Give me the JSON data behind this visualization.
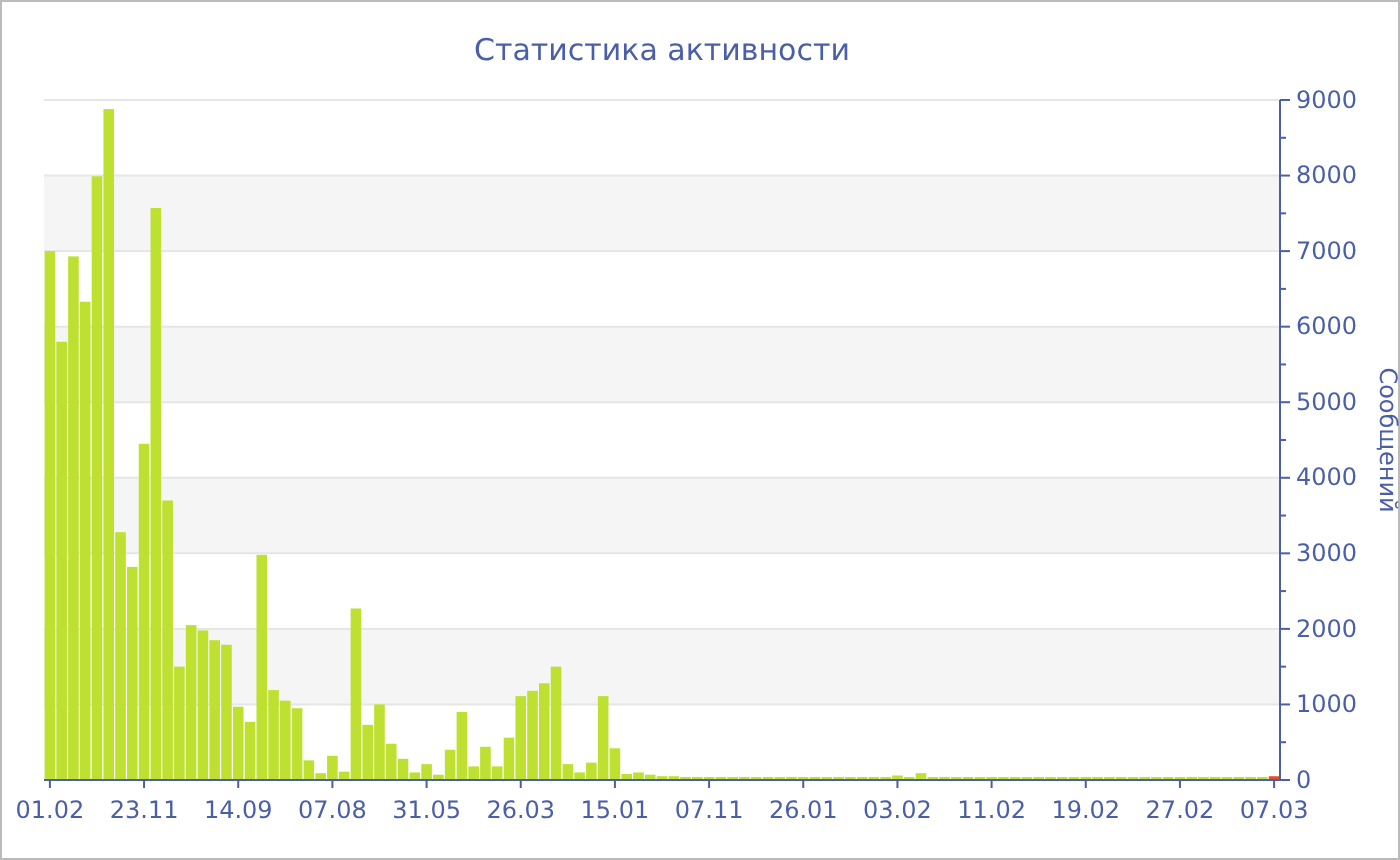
{
  "chart_data": {
    "type": "bar",
    "title": "Статистика активности",
    "ylabel": "Сообщений",
    "categories": [
      "01.02",
      null,
      null,
      null,
      null,
      null,
      null,
      null,
      "23.11",
      null,
      null,
      null,
      null,
      null,
      null,
      null,
      "14.09",
      null,
      null,
      null,
      null,
      null,
      null,
      null,
      "07.08",
      null,
      null,
      null,
      null,
      null,
      null,
      null,
      "31.05",
      null,
      null,
      null,
      null,
      null,
      null,
      null,
      "26.03",
      null,
      null,
      null,
      null,
      null,
      null,
      null,
      "15.01",
      null,
      null,
      null,
      null,
      null,
      null,
      null,
      "07.11",
      null,
      null,
      null,
      null,
      null,
      null,
      null,
      "26.01",
      null,
      null,
      null,
      null,
      null,
      null,
      null,
      "03.02",
      null,
      null,
      null,
      null,
      null,
      null,
      null,
      "11.02",
      null,
      null,
      null,
      null,
      null,
      null,
      null,
      "19.02",
      null,
      null,
      null,
      null,
      null,
      null,
      null,
      "27.02",
      null,
      null,
      null,
      null,
      null,
      null,
      null,
      "07.03"
    ],
    "values": [
      7000,
      5800,
      6930,
      6330,
      7990,
      8880,
      3280,
      2820,
      4450,
      7570,
      3700,
      1500,
      2050,
      1980,
      1850,
      1790,
      970,
      770,
      2980,
      1190,
      1050,
      950,
      260,
      90,
      320,
      110,
      2270,
      730,
      1000,
      480,
      280,
      100,
      210,
      70,
      400,
      900,
      180,
      440,
      180,
      560,
      1110,
      1180,
      1280,
      1500,
      210,
      100,
      230,
      1110,
      420,
      80,
      100,
      70,
      50,
      50,
      40,
      40,
      40,
      40,
      40,
      40,
      40,
      40,
      40,
      40,
      40,
      40,
      40,
      40,
      40,
      40,
      40,
      40,
      60,
      40,
      90,
      40,
      40,
      40,
      40,
      40,
      40,
      40,
      40,
      40,
      40,
      40,
      40,
      40,
      40,
      40,
      40,
      40,
      40,
      40,
      40,
      40,
      40,
      40,
      40,
      40,
      40,
      40,
      40,
      40,
      50
    ],
    "colors": [
      "#bde031",
      "#bde031",
      "#bde031",
      "#bde031",
      "#bde031",
      "#bde031",
      "#bde031",
      "#bde031",
      "#bde031",
      "#bde031",
      "#bde031",
      "#bde031",
      "#bde031",
      "#bde031",
      "#bde031",
      "#bde031",
      "#bde031",
      "#bde031",
      "#bde031",
      "#bde031",
      "#bde031",
      "#bde031",
      "#bde031",
      "#bde031",
      "#bde031",
      "#bde031",
      "#bde031",
      "#bde031",
      "#bde031",
      "#bde031",
      "#bde031",
      "#bde031",
      "#bde031",
      "#bde031",
      "#bde031",
      "#bde031",
      "#bde031",
      "#bde031",
      "#bde031",
      "#bde031",
      "#bde031",
      "#bde031",
      "#bde031",
      "#bde031",
      "#bde031",
      "#bde031",
      "#bde031",
      "#bde031",
      "#bde031",
      "#bde031",
      "#bde031",
      "#bde031",
      "#bde031",
      "#bde031",
      "#bde031",
      "#bde031",
      "#bde031",
      "#bde031",
      "#bde031",
      "#bde031",
      "#bde031",
      "#bde031",
      "#bde031",
      "#bde031",
      "#bde031",
      "#bde031",
      "#bde031",
      "#bde031",
      "#bde031",
      "#bde031",
      "#bde031",
      "#bde031",
      "#bde031",
      "#bde031",
      "#bde031",
      "#bde031",
      "#bde031",
      "#bde031",
      "#bde031",
      "#bde031",
      "#bde031",
      "#bde031",
      "#bde031",
      "#bde031",
      "#bde031",
      "#bde031",
      "#bde031",
      "#bde031",
      "#bde031",
      "#bde031",
      "#bde031",
      "#bde031",
      "#bde031",
      "#bde031",
      "#bde031",
      "#bde031",
      "#bde031",
      "#bde031",
      "#bde031",
      "#bde031",
      "#bde031",
      "#bde031",
      "#bde031",
      "#bde031",
      "#e0502a"
    ],
    "ylim": [
      0,
      9000
    ],
    "yticks": [
      0,
      1000,
      2000,
      3000,
      4000,
      5000,
      6000,
      7000,
      8000,
      9000
    ],
    "grid": "y"
  }
}
